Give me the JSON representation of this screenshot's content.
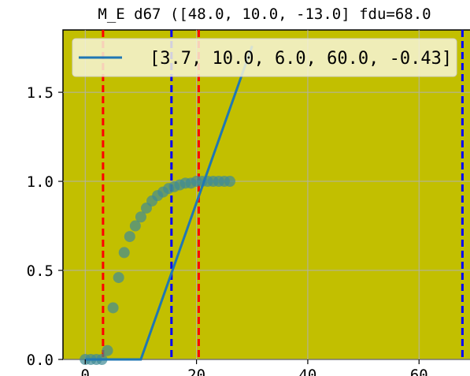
{
  "chart_data": {
    "type": "line",
    "title": "M_E d67 ([48.0, 10.0, -13.0] fdu=68.0",
    "xlabel": "",
    "ylabel": "",
    "xlim": [
      -4,
      71
    ],
    "ylim": [
      0,
      1.85
    ],
    "xticks": [
      0,
      20,
      40,
      60
    ],
    "xtick_labels": [
      "0",
      "20",
      "40",
      "60"
    ],
    "yticks": [
      0.0,
      0.5,
      1.0,
      1.5
    ],
    "ytick_labels": [
      "0.0",
      "0.5",
      "1.0",
      "1.5"
    ],
    "grid": true,
    "legend_position": "top-right",
    "background_color": "#c2bf00",
    "series": [
      {
        "name": "[3.7, 10.0, 6.0, 60.0, -0.43]",
        "kind": "line",
        "color": "#1f77b4",
        "x": [
          0,
          10,
          30
        ],
        "y": [
          0,
          0,
          1.76
        ]
      },
      {
        "kind": "scatter",
        "color": "#3f8a96",
        "x": [
          0,
          1,
          2,
          3,
          4,
          5,
          6,
          7,
          8,
          9,
          10,
          11,
          12,
          13,
          14,
          15,
          16,
          17,
          18,
          19,
          20,
          21,
          22,
          23,
          24,
          25,
          26
        ],
        "y": [
          0.0,
          0.0,
          0.0,
          0.0,
          0.05,
          0.29,
          0.46,
          0.6,
          0.69,
          0.75,
          0.8,
          0.85,
          0.89,
          0.92,
          0.94,
          0.96,
          0.97,
          0.98,
          0.99,
          0.99,
          1.0,
          1.0,
          1.0,
          1.0,
          1.0,
          1.0,
          1.0
        ]
      }
    ],
    "vlines": [
      {
        "x": 3.2,
        "color": "#ff0000"
      },
      {
        "x": 15.5,
        "color": "#0000ff"
      },
      {
        "x": 20.4,
        "color": "#ff0000"
      },
      {
        "x": 67.8,
        "color": "#0000ff"
      }
    ]
  }
}
